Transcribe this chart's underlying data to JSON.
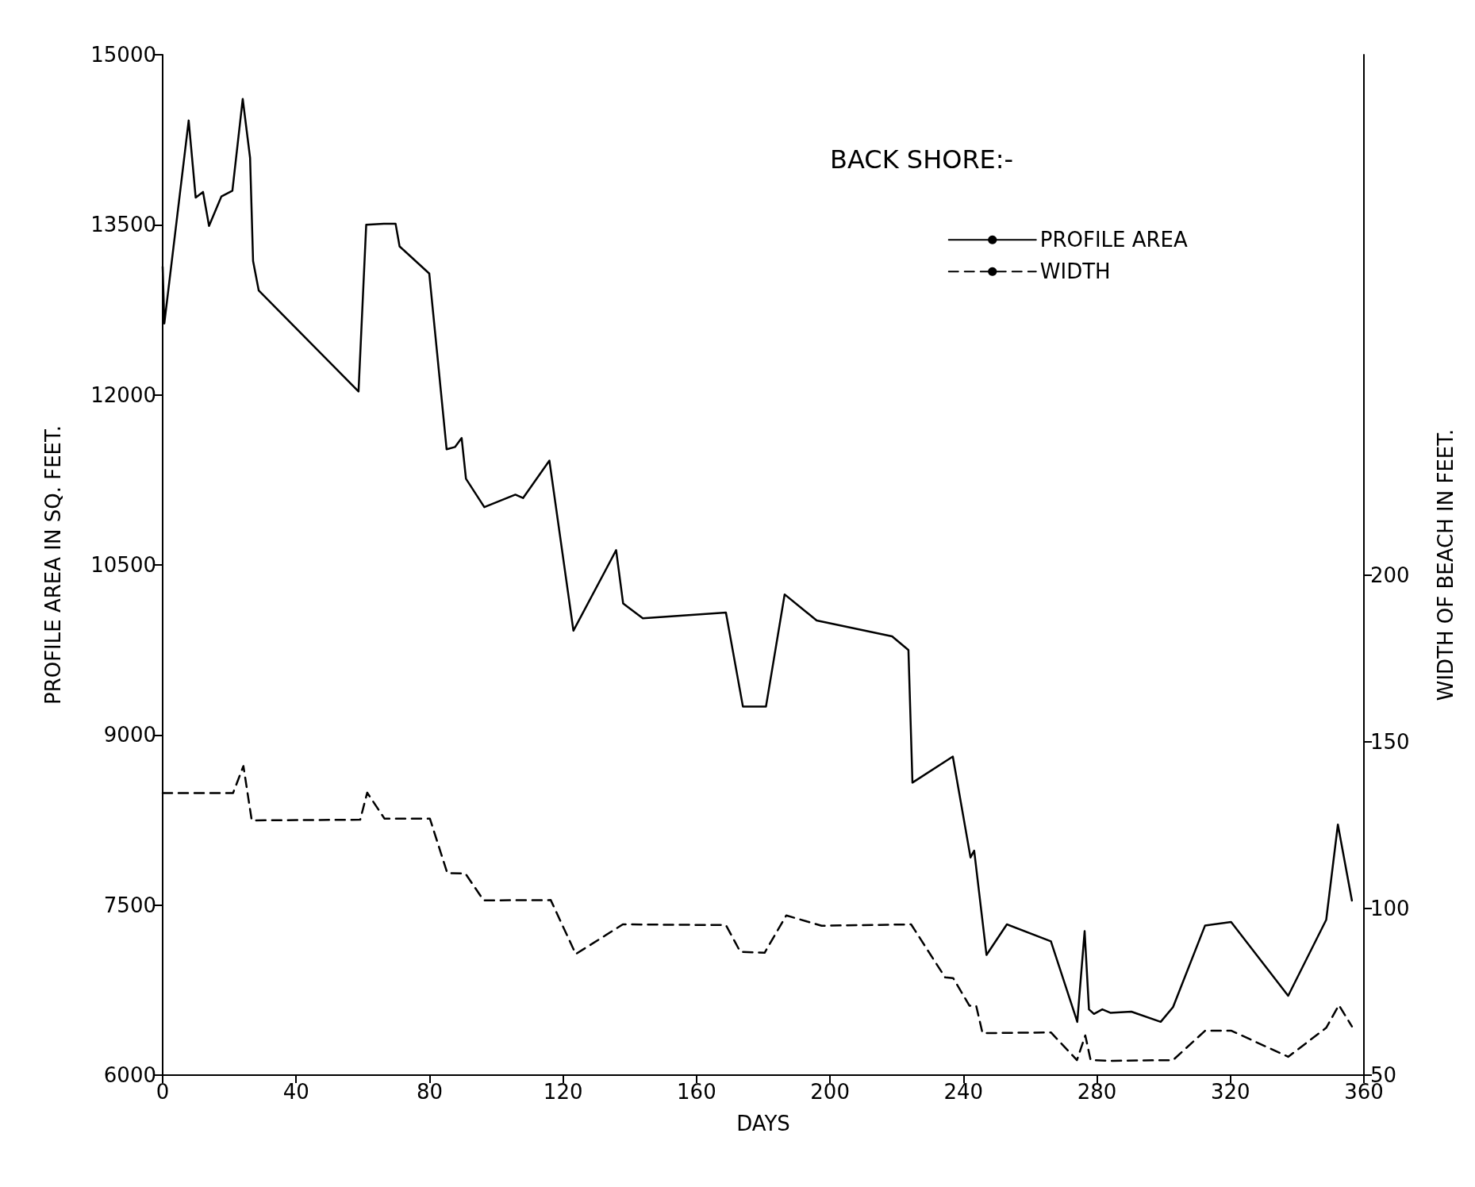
{
  "chart_data": {
    "type": "line",
    "title": "BACK SHORE:-",
    "xlabel": "DAYS",
    "ylabel": "PROFILE AREA IN SQ. FEET.",
    "y2label": "WIDTH OF BEACH IN FEET.",
    "xlim": [
      0,
      360
    ],
    "xticks": [
      0,
      40,
      80,
      120,
      160,
      200,
      240,
      280,
      320,
      360
    ],
    "ylim": [
      6000,
      15000
    ],
    "yticks": [
      6000,
      7500,
      9000,
      10500,
      12000,
      13500,
      15000
    ],
    "y2lim": [
      50,
      356
    ],
    "y2ticks": [
      50,
      100,
      150,
      200
    ],
    "grid": false,
    "legend": "top right",
    "marker": "none",
    "series": [
      {
        "name": "PROFILE AREA",
        "color": "#000000",
        "line_style": "solid",
        "x": [
          0,
          0.5,
          7.8,
          9.9,
          12.1,
          13.9,
          17.6,
          20.9,
          24,
          26.2,
          27.1,
          28.8,
          58.7,
          61,
          66.3,
          69.8,
          71,
          79.9,
          85.1,
          87.6,
          89.6,
          90.9,
          96.4,
          105.7,
          108,
          115.9,
          123.1,
          135.9,
          138,
          143.9,
          168.8,
          173.9,
          180.8,
          186.4,
          196,
          218.6,
          223.5,
          224.7,
          236.8,
          242.1,
          243.2,
          246.9,
          253,
          266.2,
          274.1,
          276.3,
          277.6,
          279.1,
          281.6,
          284,
          290.3,
          299.1,
          302.8,
          312.4,
          320.2,
          337.3,
          348.7,
          352.2,
          356.4
        ],
        "values": [
          13130,
          12630,
          14420,
          13740,
          13790,
          13490,
          13750,
          13800,
          14610,
          14090,
          13180,
          12920,
          12030,
          13500,
          13510,
          13510,
          13310,
          13070,
          11520,
          11540,
          11620,
          11260,
          11010,
          11120,
          11090,
          11420,
          9920,
          10630,
          10160,
          10030,
          10080,
          9250,
          9250,
          10240,
          10010,
          9870,
          9750,
          8580,
          8810,
          7920,
          7980,
          7060,
          7330,
          7180,
          6470,
          7270,
          6580,
          6540,
          6580,
          6550,
          6560,
          6470,
          6600,
          7320,
          7350,
          6700,
          7370,
          8210,
          7540
        ]
      },
      {
        "name": "WIDTH",
        "color": "#000000",
        "line_style": "dashed",
        "axis": "y2",
        "x": [
          0,
          21.1,
          24.2,
          26.7,
          59.2,
          61.3,
          66.5,
          80.1,
          85.3,
          90.7,
          96.2,
          116.3,
          123.8,
          137.9,
          168.8,
          173.1,
          180.4,
          186.9,
          197.5,
          224.3,
          234.5,
          236.9,
          241.8,
          243.8,
          245.7,
          266.2,
          274,
          276.5,
          278.1,
          284.8,
          302.8,
          312.4,
          320.3,
          337.3,
          348.7,
          352.5,
          356.4
        ],
        "values": [
          134.6,
          134.6,
          142.7,
          126.4,
          126.6,
          134.7,
          126.9,
          126.9,
          110.6,
          110.5,
          102.4,
          102.5,
          86.3,
          95.2,
          95,
          87,
          86.7,
          97.9,
          94.8,
          95.2,
          79.3,
          79.1,
          70.8,
          70.8,
          62.6,
          62.8,
          54.5,
          61.9,
          54.5,
          54.3,
          54.5,
          63.3,
          63.3,
          55.5,
          64.2,
          71,
          64.6
        ]
      }
    ]
  }
}
